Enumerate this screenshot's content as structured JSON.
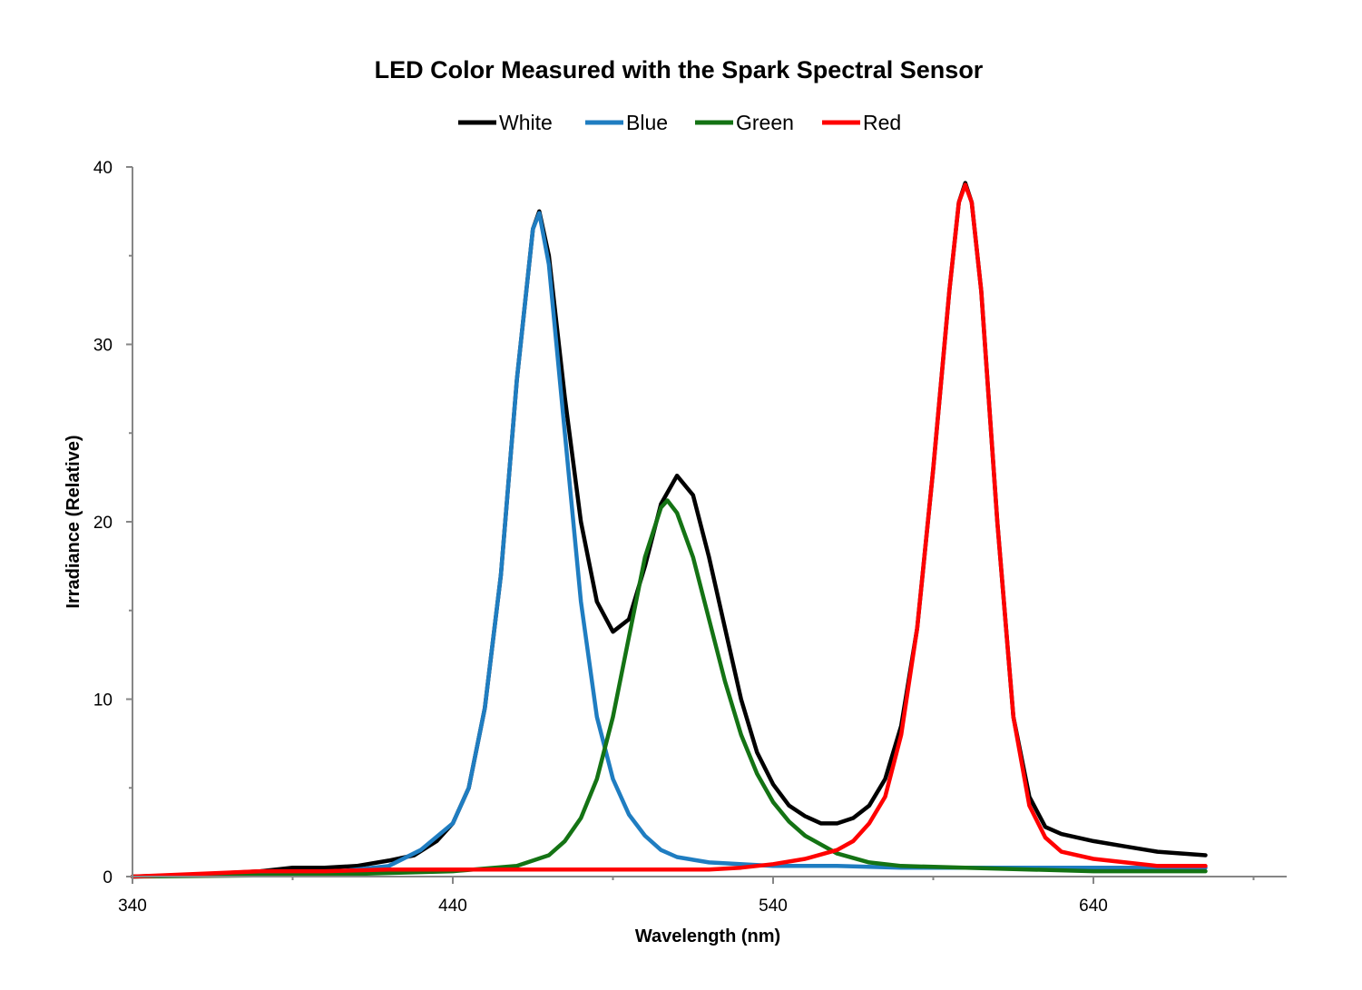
{
  "chart_data": {
    "type": "line",
    "title": "LED Color Measured with the Spark Spectral Sensor",
    "xlabel": "Wavelength (nm)",
    "ylabel": "Irradiance (Relative)",
    "xlim": [
      340,
      700
    ],
    "ylim": [
      0,
      40
    ],
    "x_ticks": [
      340,
      440,
      540,
      640
    ],
    "y_ticks": [
      0,
      10,
      20,
      30,
      40
    ],
    "grid": false,
    "legend_position": "top",
    "series": [
      {
        "name": "White",
        "color": "#000000",
        "points": [
          [
            340,
            0
          ],
          [
            360,
            0.1
          ],
          [
            380,
            0.3
          ],
          [
            390,
            0.5
          ],
          [
            400,
            0.5
          ],
          [
            410,
            0.6
          ],
          [
            420,
            0.9
          ],
          [
            428,
            1.2
          ],
          [
            435,
            2.0
          ],
          [
            440,
            3.0
          ],
          [
            445,
            5.0
          ],
          [
            450,
            9.5
          ],
          [
            455,
            17
          ],
          [
            460,
            28
          ],
          [
            465,
            36.5
          ],
          [
            467,
            37.5
          ],
          [
            470,
            35
          ],
          [
            475,
            27
          ],
          [
            480,
            20
          ],
          [
            485,
            15.5
          ],
          [
            490,
            13.8
          ],
          [
            495,
            14.5
          ],
          [
            500,
            17.5
          ],
          [
            505,
            21
          ],
          [
            510,
            22.6
          ],
          [
            515,
            21.5
          ],
          [
            520,
            18
          ],
          [
            525,
            14
          ],
          [
            530,
            10
          ],
          [
            535,
            7
          ],
          [
            540,
            5.2
          ],
          [
            545,
            4.0
          ],
          [
            550,
            3.4
          ],
          [
            555,
            3.0
          ],
          [
            560,
            3.0
          ],
          [
            565,
            3.3
          ],
          [
            570,
            4.0
          ],
          [
            575,
            5.5
          ],
          [
            580,
            8.5
          ],
          [
            585,
            14
          ],
          [
            590,
            23
          ],
          [
            595,
            33
          ],
          [
            598,
            38
          ],
          [
            600,
            39.1
          ],
          [
            602,
            38
          ],
          [
            605,
            33
          ],
          [
            610,
            20
          ],
          [
            615,
            9
          ],
          [
            620,
            4.5
          ],
          [
            625,
            2.8
          ],
          [
            630,
            2.4
          ],
          [
            640,
            2.0
          ],
          [
            650,
            1.7
          ],
          [
            660,
            1.4
          ],
          [
            675,
            1.2
          ]
        ]
      },
      {
        "name": "Blue",
        "color": "#1f7dc1",
        "points": [
          [
            340,
            0
          ],
          [
            370,
            0.1
          ],
          [
            400,
            0.2
          ],
          [
            420,
            0.6
          ],
          [
            430,
            1.5
          ],
          [
            440,
            3.0
          ],
          [
            445,
            5.0
          ],
          [
            450,
            9.5
          ],
          [
            455,
            17
          ],
          [
            460,
            28
          ],
          [
            465,
            36.5
          ],
          [
            467,
            37.4
          ],
          [
            470,
            34.5
          ],
          [
            475,
            25
          ],
          [
            480,
            15.5
          ],
          [
            485,
            9
          ],
          [
            490,
            5.5
          ],
          [
            495,
            3.5
          ],
          [
            500,
            2.3
          ],
          [
            505,
            1.5
          ],
          [
            510,
            1.1
          ],
          [
            520,
            0.8
          ],
          [
            540,
            0.6
          ],
          [
            560,
            0.6
          ],
          [
            580,
            0.5
          ],
          [
            600,
            0.5
          ],
          [
            640,
            0.5
          ],
          [
            675,
            0.5
          ]
        ]
      },
      {
        "name": "Green",
        "color": "#147314",
        "points": [
          [
            340,
            0
          ],
          [
            400,
            0.1
          ],
          [
            440,
            0.3
          ],
          [
            460,
            0.6
          ],
          [
            470,
            1.2
          ],
          [
            475,
            2.0
          ],
          [
            480,
            3.3
          ],
          [
            485,
            5.5
          ],
          [
            490,
            9
          ],
          [
            495,
            13.5
          ],
          [
            500,
            18
          ],
          [
            505,
            20.8
          ],
          [
            507,
            21.2
          ],
          [
            510,
            20.5
          ],
          [
            515,
            18
          ],
          [
            520,
            14.5
          ],
          [
            525,
            11
          ],
          [
            530,
            8
          ],
          [
            535,
            5.8
          ],
          [
            540,
            4.2
          ],
          [
            545,
            3.1
          ],
          [
            550,
            2.3
          ],
          [
            560,
            1.3
          ],
          [
            570,
            0.8
          ],
          [
            580,
            0.6
          ],
          [
            600,
            0.5
          ],
          [
            620,
            0.4
          ],
          [
            640,
            0.3
          ],
          [
            675,
            0.3
          ]
        ]
      },
      {
        "name": "Red",
        "color": "#ff0000",
        "points": [
          [
            340,
            0
          ],
          [
            380,
            0.3
          ],
          [
            400,
            0.3
          ],
          [
            420,
            0.4
          ],
          [
            450,
            0.4
          ],
          [
            480,
            0.4
          ],
          [
            500,
            0.4
          ],
          [
            520,
            0.4
          ],
          [
            530,
            0.5
          ],
          [
            540,
            0.7
          ],
          [
            550,
            1.0
          ],
          [
            560,
            1.5
          ],
          [
            565,
            2.0
          ],
          [
            570,
            3.0
          ],
          [
            575,
            4.5
          ],
          [
            580,
            8
          ],
          [
            585,
            14
          ],
          [
            590,
            23
          ],
          [
            595,
            33
          ],
          [
            598,
            38
          ],
          [
            600,
            39
          ],
          [
            602,
            38
          ],
          [
            605,
            33
          ],
          [
            610,
            20
          ],
          [
            615,
            9
          ],
          [
            620,
            4
          ],
          [
            625,
            2.2
          ],
          [
            630,
            1.4
          ],
          [
            640,
            1.0
          ],
          [
            650,
            0.8
          ],
          [
            660,
            0.6
          ],
          [
            675,
            0.6
          ]
        ]
      }
    ]
  }
}
